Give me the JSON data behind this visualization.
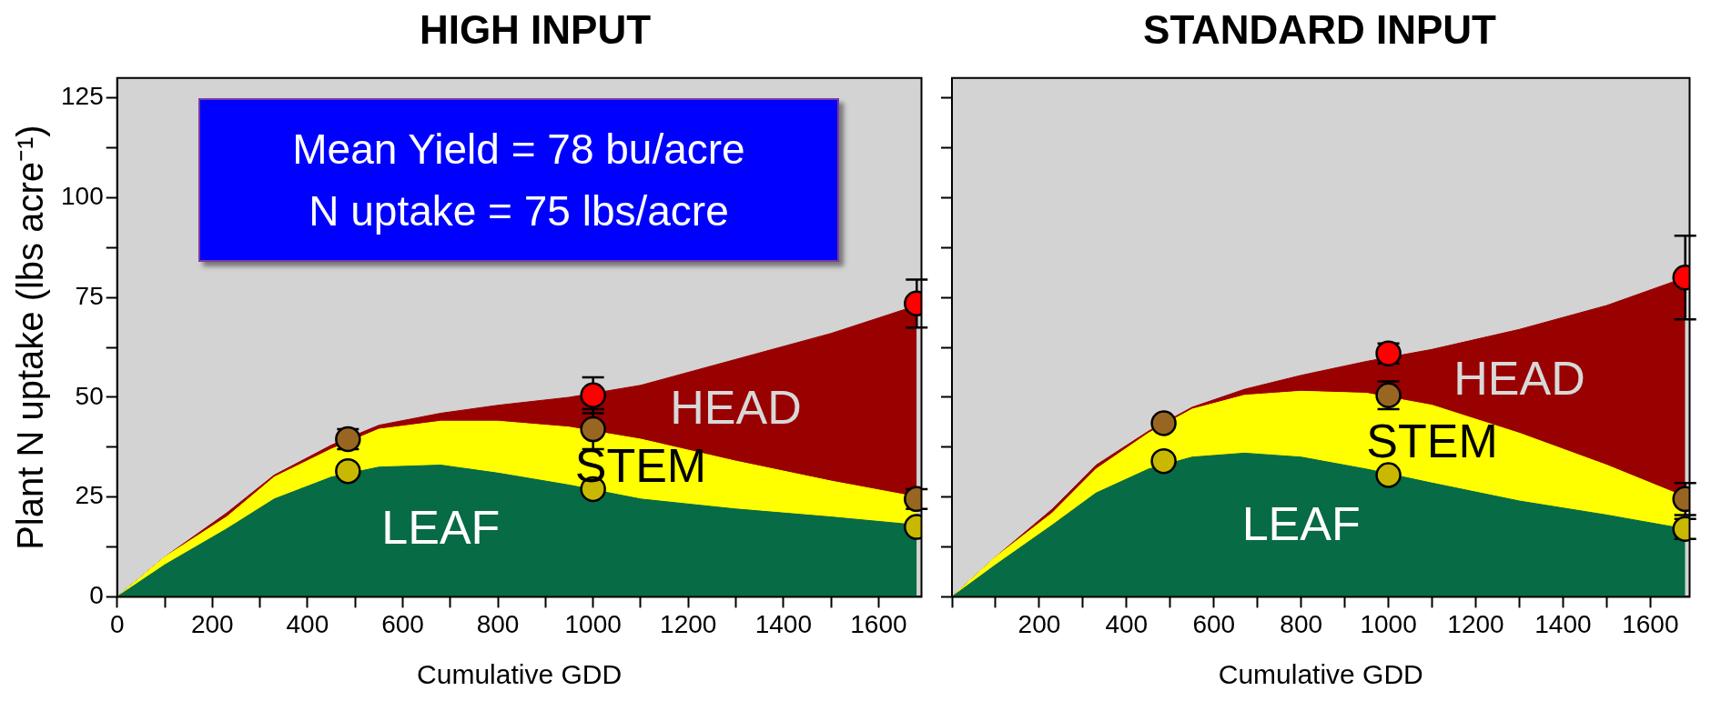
{
  "chart_data": [
    {
      "type": "area",
      "title": "HIGH INPUT",
      "xlabel": "Cumulative GDD",
      "ylabel": "Plant N uptake (lbs acre⁻¹)",
      "stacked": true,
      "grid": false,
      "legend": false,
      "xlim": [
        0,
        1690
      ],
      "xticks": [
        0,
        {
          "value": 100,
          "label": null
        },
        200,
        {
          "value": 300,
          "label": null
        },
        400,
        {
          "value": 500,
          "label": null
        },
        600,
        {
          "value": 700,
          "label": null
        },
        800,
        {
          "value": 900,
          "label": null
        },
        1000,
        {
          "value": 1100,
          "label": null
        },
        1200,
        {
          "value": 1300,
          "label": null
        },
        1400,
        {
          "value": 1500,
          "label": null
        },
        1600
      ],
      "ylim": [
        0,
        130
      ],
      "yticks": [
        0,
        {
          "value": 12.5,
          "label": null
        },
        25,
        {
          "value": 37.5,
          "label": null
        },
        50,
        {
          "value": 62.5,
          "label": null
        },
        75,
        {
          "value": 87.5,
          "label": null
        },
        100,
        {
          "value": 112.5,
          "label": null
        },
        125
      ],
      "x": [
        0,
        100,
        230,
        330,
        450,
        550,
        680,
        800,
        950,
        1100,
        1300,
        1500,
        1680
      ],
      "series": [
        {
          "name": "LEAF",
          "color": "#076b45",
          "values": [
            0,
            8,
            17,
            24.5,
            30,
            32.5,
            33,
            31,
            28,
            24.5,
            22,
            20,
            18
          ]
        },
        {
          "name": "STEM",
          "color": "#ffff00",
          "values": [
            0,
            2,
            3,
            5.5,
            7,
            9.5,
            11,
            13,
            14.5,
            15,
            12,
            9,
            7
          ]
        },
        {
          "name": "HEAD",
          "color": "#990000",
          "values": [
            0,
            0,
            1,
            0.5,
            1,
            1,
            2,
            4,
            7.5,
            13.5,
            25.5,
            37,
            48
          ]
        },
        {
          "type": "scatter",
          "marker": "circle",
          "color": "#c8b800",
          "x": [
            485,
            1000,
            1680
          ],
          "values": [
            31.5,
            27,
            17.5
          ]
        },
        {
          "type": "scatter",
          "marker": "circle",
          "color": "#996622",
          "x": [
            485,
            1000,
            1680
          ],
          "values": [
            39.5,
            42,
            24.5
          ],
          "errors": [
            2.5,
            5,
            2.5
          ]
        },
        {
          "type": "scatter",
          "marker": "circle",
          "color": "#ff0000",
          "x": [
            1000,
            1680
          ],
          "values": [
            50.5,
            73.5
          ],
          "errors": [
            4.5,
            6
          ]
        }
      ],
      "annotations": [
        "Mean Yield = 78 bu/acre",
        "N uptake = 75 lbs/acre"
      ]
    },
    {
      "type": "area",
      "title": "STANDARD INPUT",
      "xlabel": "Cumulative GDD",
      "stacked": true,
      "grid": false,
      "legend": false,
      "tick_labels": "x",
      "xlim": [
        0,
        1690
      ],
      "xticks": [
        {
          "value": 0,
          "label": null
        },
        {
          "value": 100,
          "label": null
        },
        200,
        {
          "value": 300,
          "label": null
        },
        400,
        {
          "value": 500,
          "label": null
        },
        600,
        {
          "value": 700,
          "label": null
        },
        800,
        {
          "value": 900,
          "label": null
        },
        1000,
        {
          "value": 1100,
          "label": null
        },
        1200,
        {
          "value": 1300,
          "label": null
        },
        1400,
        {
          "value": 1500,
          "label": null
        },
        1600
      ],
      "ylim": [
        0,
        130
      ],
      "yticks": [
        0,
        {
          "value": 12.5,
          "label": null
        },
        25,
        {
          "value": 37.5,
          "label": null
        },
        50,
        {
          "value": 62.5,
          "label": null
        },
        75,
        {
          "value": 87.5,
          "label": null
        },
        100,
        {
          "value": 112.5,
          "label": null
        },
        125
      ],
      "x": [
        0,
        100,
        230,
        330,
        450,
        550,
        670,
        800,
        950,
        1100,
        1300,
        1500,
        1680
      ],
      "series": [
        {
          "name": "LEAF",
          "color": "#076b45",
          "values": [
            0,
            8,
            18,
            26,
            32,
            35,
            36,
            35,
            32,
            28.5,
            24,
            20.5,
            17
          ]
        },
        {
          "name": "STEM",
          "color": "#ffff00",
          "values": [
            0,
            2,
            3,
            6,
            9,
            12,
            14.5,
            16.5,
            19,
            19.5,
            17,
            12.5,
            8
          ]
        },
        {
          "name": "HEAD",
          "color": "#990000",
          "values": [
            0,
            0,
            1,
            1,
            0.5,
            0.5,
            1.5,
            4,
            8,
            14,
            26,
            40,
            55
          ]
        },
        {
          "type": "scatter",
          "marker": "circle",
          "color": "#c8b800",
          "x": [
            485,
            1000,
            1680
          ],
          "values": [
            34,
            30.5,
            17
          ],
          "errors": [
            null,
            null,
            2.5
          ]
        },
        {
          "type": "scatter",
          "marker": "circle",
          "color": "#996622",
          "x": [
            485,
            1000,
            1680
          ],
          "values": [
            43.5,
            50.5,
            24.5
          ],
          "errors": [
            null,
            3.5,
            4
          ]
        },
        {
          "type": "scatter",
          "marker": "circle",
          "color": "#ff0000",
          "x": [
            1000,
            1680
          ],
          "values": [
            61,
            80
          ],
          "errors": [
            2.5,
            10.5
          ]
        }
      ]
    }
  ]
}
